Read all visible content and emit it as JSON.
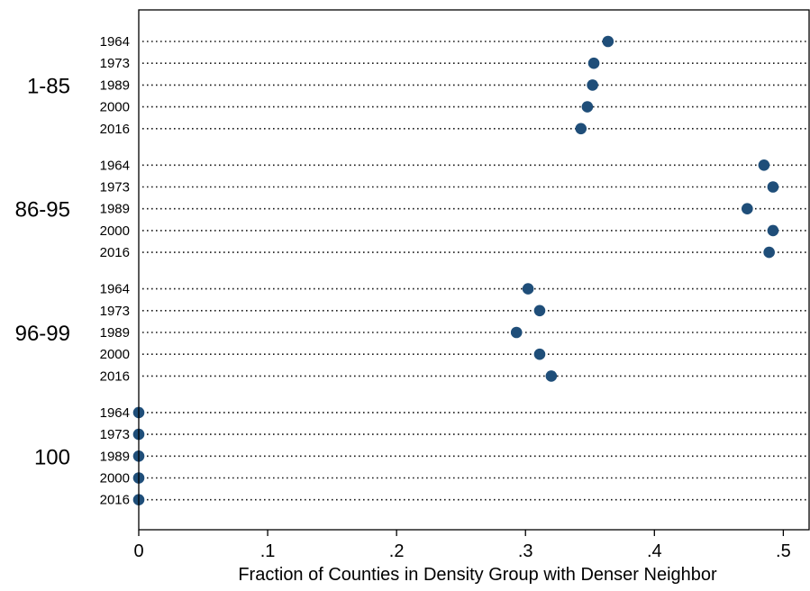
{
  "chart_data": {
    "type": "dot",
    "xlabel": "Fraction of Counties in Density Group with Denser Neighbor",
    "ylabel": "",
    "xlim": [
      0,
      0.52
    ],
    "x_ticks": [
      0,
      0.1,
      0.2,
      0.3,
      0.4,
      0.5
    ],
    "x_tick_labels": [
      "0",
      ".1",
      ".2",
      ".3",
      ".4",
      ".5"
    ],
    "marker_color": "#1f4e79",
    "grid": "dotted row guides",
    "groups": [
      {
        "label": "1-85",
        "rows": [
          {
            "year": "1964",
            "value": 0.364
          },
          {
            "year": "1973",
            "value": 0.353
          },
          {
            "year": "1989",
            "value": 0.352
          },
          {
            "year": "2000",
            "value": 0.348
          },
          {
            "year": "2016",
            "value": 0.343
          }
        ]
      },
      {
        "label": "86-95",
        "rows": [
          {
            "year": "1964",
            "value": 0.485
          },
          {
            "year": "1973",
            "value": 0.492
          },
          {
            "year": "1989",
            "value": 0.472
          },
          {
            "year": "2000",
            "value": 0.492
          },
          {
            "year": "2016",
            "value": 0.489
          }
        ]
      },
      {
        "label": "96-99",
        "rows": [
          {
            "year": "1964",
            "value": 0.302
          },
          {
            "year": "1973",
            "value": 0.311
          },
          {
            "year": "1989",
            "value": 0.293
          },
          {
            "year": "2000",
            "value": 0.311
          },
          {
            "year": "2016",
            "value": 0.32
          }
        ]
      },
      {
        "label": "100",
        "rows": [
          {
            "year": "1964",
            "value": 0.0
          },
          {
            "year": "1973",
            "value": 0.0
          },
          {
            "year": "1989",
            "value": 0.0
          },
          {
            "year": "2000",
            "value": 0.0
          },
          {
            "year": "2016",
            "value": 0.0
          }
        ]
      }
    ]
  }
}
